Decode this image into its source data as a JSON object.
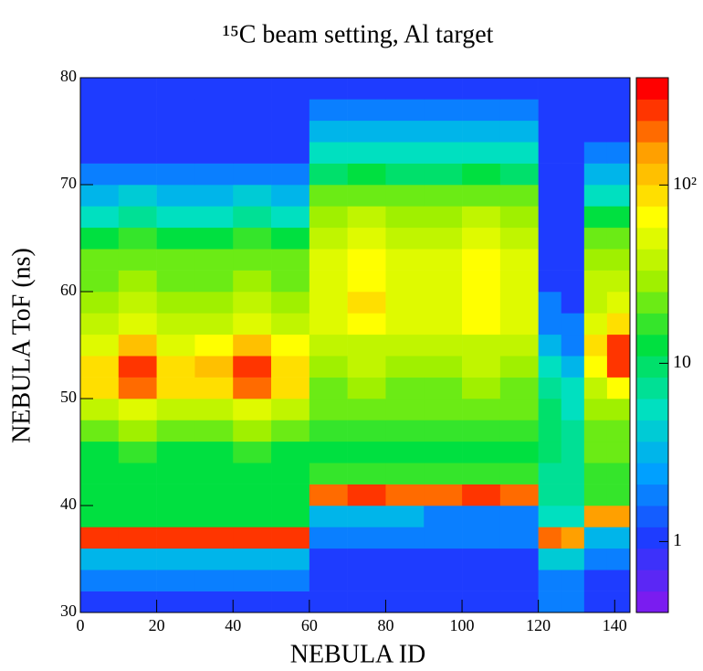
{
  "chart_data": {
    "type": "heatmap",
    "title": "¹⁵C beam setting, Al target",
    "xlabel": "NEBULA ID",
    "ylabel": "NEBULA ToF (ns)",
    "xbins": [
      0,
      10,
      20,
      30,
      40,
      50,
      60,
      70,
      80,
      90,
      100,
      110,
      120,
      126,
      132,
      138,
      144
    ],
    "ybins": [
      30,
      32,
      34,
      36,
      38,
      40,
      42,
      44,
      46,
      48,
      50,
      52,
      54,
      56,
      58,
      60,
      62,
      64,
      66,
      68,
      70,
      72,
      74,
      76,
      78,
      80
    ],
    "xlim": [
      0,
      144
    ],
    "ylim": [
      30,
      80
    ],
    "xticks": [
      0,
      20,
      40,
      60,
      80,
      100,
      120,
      140
    ],
    "yticks": [
      30,
      40,
      50,
      60,
      70,
      80
    ],
    "zlim": [
      0.4,
      400
    ],
    "zscale": "log",
    "zticks": [
      1,
      10,
      {
        "value": 100,
        "label": "10²"
      }
    ],
    "palette": [
      "#7a1cf0",
      "#1e3cff",
      "#00a0ff",
      "#00e0c0",
      "#00e040",
      "#a0f000",
      "#ffff00",
      "#ffa000",
      "#ff0000"
    ],
    "z": [
      [
        1,
        1,
        1,
        1,
        1,
        1,
        1,
        1,
        1,
        1,
        1,
        1,
        2,
        2,
        1,
        1
      ],
      [
        2,
        2,
        2,
        2,
        2,
        2,
        1,
        1,
        1,
        1,
        1,
        1,
        2,
        2,
        1,
        1
      ],
      [
        3,
        3,
        3,
        3,
        3,
        3,
        1,
        1,
        1,
        1,
        1,
        1,
        4,
        4,
        2,
        2
      ],
      [
        250,
        300,
        250,
        250,
        300,
        250,
        2,
        2,
        2,
        2,
        2,
        2,
        200,
        150,
        3,
        3
      ],
      [
        12,
        12,
        12,
        12,
        12,
        12,
        3,
        3,
        3,
        2,
        2,
        2,
        5,
        5,
        150,
        150
      ],
      [
        12,
        12,
        12,
        12,
        12,
        12,
        200,
        250,
        200,
        200,
        250,
        200,
        8,
        8,
        15,
        15
      ],
      [
        12,
        14,
        12,
        12,
        14,
        12,
        15,
        15,
        15,
        15,
        15,
        15,
        8,
        8,
        15,
        15
      ],
      [
        14,
        16,
        14,
        14,
        16,
        14,
        12,
        12,
        12,
        12,
        12,
        12,
        10,
        8,
        20,
        20
      ],
      [
        25,
        30,
        25,
        25,
        30,
        25,
        15,
        15,
        15,
        15,
        15,
        15,
        10,
        8,
        25,
        25
      ],
      [
        40,
        50,
        40,
        40,
        50,
        40,
        20,
        22,
        20,
        20,
        22,
        20,
        10,
        6,
        30,
        30
      ],
      [
        80,
        200,
        80,
        80,
        200,
        80,
        25,
        28,
        25,
        25,
        28,
        25,
        8,
        5,
        40,
        60
      ],
      [
        100,
        300,
        100,
        120,
        300,
        100,
        30,
        35,
        30,
        30,
        35,
        30,
        5,
        3,
        60,
        250
      ],
      [
        50,
        120,
        50,
        60,
        120,
        60,
        35,
        40,
        35,
        35,
        40,
        35,
        3,
        2,
        80,
        300
      ],
      [
        35,
        45,
        35,
        35,
        45,
        35,
        45,
        70,
        45,
        45,
        60,
        45,
        2,
        2,
        50,
        80
      ],
      [
        30,
        35,
        30,
        30,
        35,
        30,
        50,
        80,
        50,
        50,
        70,
        50,
        2,
        1,
        40,
        50
      ],
      [
        25,
        30,
        25,
        25,
        30,
        25,
        50,
        70,
        50,
        50,
        70,
        50,
        1,
        1,
        35,
        40
      ],
      [
        20,
        25,
        20,
        20,
        25,
        20,
        45,
        70,
        45,
        45,
        70,
        45,
        1,
        1,
        30,
        30
      ],
      [
        12,
        15,
        12,
        12,
        15,
        12,
        40,
        55,
        40,
        40,
        55,
        40,
        1,
        1,
        20,
        20
      ],
      [
        6,
        8,
        6,
        6,
        8,
        6,
        30,
        40,
        30,
        30,
        40,
        30,
        1,
        1,
        12,
        12
      ],
      [
        3,
        4,
        3,
        3,
        4,
        3,
        20,
        25,
        20,
        20,
        25,
        20,
        1,
        1,
        6,
        6
      ],
      [
        2,
        2,
        2,
        2,
        2,
        2,
        10,
        12,
        10,
        10,
        12,
        10,
        1,
        1,
        3,
        3
      ],
      [
        1,
        1,
        1,
        1,
        1,
        1,
        5,
        6,
        5,
        5,
        6,
        5,
        1,
        1,
        2,
        2
      ],
      [
        1,
        1,
        1,
        1,
        1,
        1,
        3,
        3,
        3,
        3,
        3,
        3,
        1,
        1,
        1,
        1
      ],
      [
        1,
        1,
        1,
        1,
        1,
        1,
        2,
        2,
        2,
        2,
        2,
        2,
        1,
        1,
        1,
        1
      ],
      [
        1,
        1,
        1,
        1,
        1,
        1,
        1,
        1,
        1,
        1,
        1,
        1,
        1,
        1,
        1,
        1
      ]
    ]
  }
}
